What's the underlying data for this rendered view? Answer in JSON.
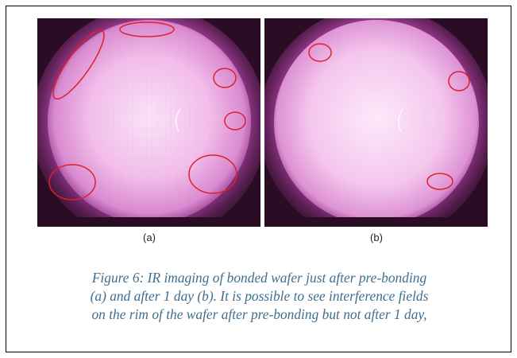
{
  "figure": {
    "panels": [
      {
        "label": "(a)",
        "highlight_count": 6
      },
      {
        "label": "(b)",
        "highlight_count": 3
      }
    ],
    "caption_lines": [
      "Figure 6: IR imaging of bonded wafer just after pre-bonding",
      "(a) and after 1 day (b). It is possible to see interference fields",
      "on the rim of the wafer after pre-bonding but not after 1 day,"
    ],
    "colors": {
      "wafer_glow": "#f6c8f1",
      "wafer_edge": "#b24aa8",
      "background": "#2a0c24",
      "highlight": "#e0202a",
      "caption_text": "#3f6f8e"
    }
  }
}
